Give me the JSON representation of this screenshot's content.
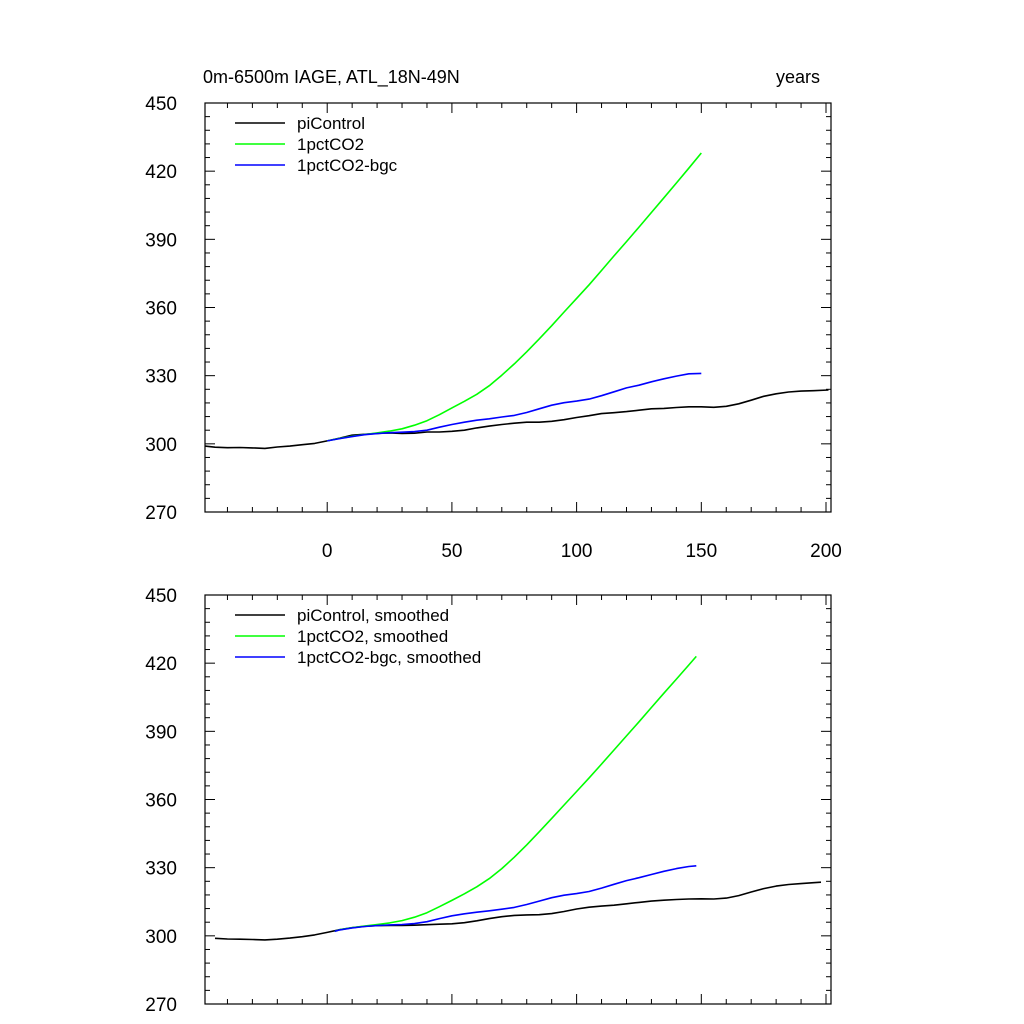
{
  "chart_data": [
    {
      "type": "line",
      "title": "0m-6500m IAGE, ATL_18N-49N",
      "right_title": "years",
      "xlabel": "",
      "ylabel": "",
      "xlim": [
        -49,
        202
      ],
      "ylim": [
        270,
        450
      ],
      "x_ticks": [
        0,
        50,
        100,
        150,
        200
      ],
      "x_tick_labels": [
        "0",
        "50",
        "100",
        "150",
        "200"
      ],
      "y_ticks": [
        270,
        300,
        330,
        360,
        390,
        420,
        450
      ],
      "y_tick_labels": [
        "270",
        "300",
        "330",
        "360",
        "390",
        "420",
        "450"
      ],
      "legend_position": "top-left",
      "grid": false,
      "series": [
        {
          "name": "piControl",
          "color": "#000000",
          "points": [
            [
              -49,
              299
            ],
            [
              -45,
              298.5
            ],
            [
              -40,
              298.3
            ],
            [
              -35,
              298.4
            ],
            [
              -30,
              298.2
            ],
            [
              -25,
              298
            ],
            [
              -20,
              298.6
            ],
            [
              -15,
              299
            ],
            [
              -10,
              299.6
            ],
            [
              -5,
              300.2
            ],
            [
              0,
              301.3
            ],
            [
              5,
              302.5
            ],
            [
              10,
              303.8
            ],
            [
              15,
              304.2
            ],
            [
              20,
              304.6
            ],
            [
              25,
              304.8
            ],
            [
              30,
              304.6
            ],
            [
              35,
              304.7
            ],
            [
              40,
              305.2
            ],
            [
              45,
              305.2
            ],
            [
              50,
              305.5
            ],
            [
              55,
              306
            ],
            [
              60,
              307
            ],
            [
              65,
              307.8
            ],
            [
              70,
              308.5
            ],
            [
              75,
              309.1
            ],
            [
              80,
              309.5
            ],
            [
              85,
              309.5
            ],
            [
              90,
              309.9
            ],
            [
              95,
              310.6
            ],
            [
              100,
              311.6
            ],
            [
              105,
              312.4
            ],
            [
              110,
              313.3
            ],
            [
              115,
              313.7
            ],
            [
              120,
              314.2
            ],
            [
              125,
              314.8
            ],
            [
              130,
              315.4
            ],
            [
              135,
              315.6
            ],
            [
              140,
              316
            ],
            [
              145,
              316.3
            ],
            [
              150,
              316.3
            ],
            [
              155,
              316.1
            ],
            [
              160,
              316.5
            ],
            [
              165,
              317.6
            ],
            [
              170,
              319.2
            ],
            [
              175,
              320.9
            ],
            [
              180,
              322
            ],
            [
              185,
              322.8
            ],
            [
              190,
              323.2
            ],
            [
              195,
              323.4
            ],
            [
              201,
              323.7
            ]
          ]
        },
        {
          "name": "1pctCO2",
          "color": "#00ff00",
          "points": [
            [
              0,
              301.3
            ],
            [
              5,
              302.4
            ],
            [
              10,
              303.3
            ],
            [
              15,
              304.1
            ],
            [
              20,
              304.8
            ],
            [
              25,
              305.6
            ],
            [
              30,
              306.6
            ],
            [
              35,
              308.2
            ],
            [
              40,
              310.2
            ],
            [
              45,
              312.8
            ],
            [
              50,
              315.8
            ],
            [
              55,
              318.7
            ],
            [
              60,
              321.8
            ],
            [
              65,
              325.6
            ],
            [
              70,
              330.2
            ],
            [
              75,
              335.2
            ],
            [
              80,
              340.5
            ],
            [
              85,
              346.2
            ],
            [
              90,
              352
            ],
            [
              95,
              358
            ],
            [
              100,
              364
            ],
            [
              105,
              370
            ],
            [
              110,
              376.3
            ],
            [
              115,
              382.7
            ],
            [
              120,
              389
            ],
            [
              125,
              395.4
            ],
            [
              130,
              401.8
            ],
            [
              135,
              408.3
            ],
            [
              140,
              414.8
            ],
            [
              145,
              421.3
            ],
            [
              150,
              428
            ]
          ]
        },
        {
          "name": "1pctCO2-bgc",
          "color": "#0000ff",
          "points": [
            [
              0,
              301.3
            ],
            [
              5,
              302.3
            ],
            [
              10,
              303.2
            ],
            [
              15,
              304
            ],
            [
              20,
              304.5
            ],
            [
              25,
              304.9
            ],
            [
              30,
              305.1
            ],
            [
              35,
              305.4
            ],
            [
              40,
              306
            ],
            [
              45,
              307.3
            ],
            [
              50,
              308.5
            ],
            [
              55,
              309.5
            ],
            [
              60,
              310.4
            ],
            [
              65,
              311
            ],
            [
              70,
              311.8
            ],
            [
              75,
              312.5
            ],
            [
              80,
              313.8
            ],
            [
              85,
              315.4
            ],
            [
              90,
              317
            ],
            [
              95,
              318.1
            ],
            [
              100,
              318.8
            ],
            [
              105,
              319.7
            ],
            [
              110,
              321.2
            ],
            [
              115,
              322.9
            ],
            [
              120,
              324.6
            ],
            [
              125,
              325.8
            ],
            [
              130,
              327.3
            ],
            [
              135,
              328.6
            ],
            [
              140,
              329.8
            ],
            [
              145,
              330.8
            ],
            [
              150,
              331
            ]
          ]
        }
      ]
    },
    {
      "type": "line",
      "title": "",
      "xlabel": "",
      "ylabel": "",
      "xlim": [
        -49,
        202
      ],
      "ylim": [
        270,
        450
      ],
      "x_ticks": [
        0,
        50,
        100,
        150,
        200
      ],
      "y_ticks": [
        270,
        300,
        330,
        360,
        390,
        420,
        450
      ],
      "y_tick_labels": [
        "270",
        "300",
        "330",
        "360",
        "390",
        "420",
        "450"
      ],
      "legend_position": "top-left",
      "grid": false,
      "series": [
        {
          "name": "piControl, smoothed",
          "color": "#000000",
          "points": [
            [
              -45,
              298.9
            ],
            [
              -40,
              298.6
            ],
            [
              -35,
              298.5
            ],
            [
              -30,
              298.4
            ],
            [
              -25,
              298.2
            ],
            [
              -20,
              298.5
            ],
            [
              -15,
              299
            ],
            [
              -10,
              299.6
            ],
            [
              -5,
              300.4
            ],
            [
              0,
              301.5
            ],
            [
              5,
              302.7
            ],
            [
              10,
              303.6
            ],
            [
              15,
              304.2
            ],
            [
              20,
              304.5
            ],
            [
              25,
              304.6
            ],
            [
              30,
              304.6
            ],
            [
              35,
              304.7
            ],
            [
              40,
              304.9
            ],
            [
              45,
              305.1
            ],
            [
              50,
              305.3
            ],
            [
              55,
              305.8
            ],
            [
              60,
              306.6
            ],
            [
              65,
              307.6
            ],
            [
              70,
              308.4
            ],
            [
              75,
              309
            ],
            [
              80,
              309.2
            ],
            [
              85,
              309.3
            ],
            [
              90,
              309.8
            ],
            [
              95,
              310.7
            ],
            [
              100,
              311.8
            ],
            [
              105,
              312.6
            ],
            [
              110,
              313.1
            ],
            [
              115,
              313.5
            ],
            [
              120,
              314.1
            ],
            [
              125,
              314.7
            ],
            [
              130,
              315.3
            ],
            [
              135,
              315.7
            ],
            [
              140,
              316
            ],
            [
              145,
              316.2
            ],
            [
              150,
              316.3
            ],
            [
              155,
              316.2
            ],
            [
              160,
              316.6
            ],
            [
              165,
              317.7
            ],
            [
              170,
              319.3
            ],
            [
              175,
              320.8
            ],
            [
              180,
              321.9
            ],
            [
              185,
              322.6
            ],
            [
              190,
              323
            ],
            [
              195,
              323.4
            ],
            [
              198,
              323.6
            ]
          ]
        },
        {
          "name": "1pctCO2, smoothed",
          "color": "#00ff00",
          "points": [
            [
              3,
              302
            ],
            [
              5,
              302.7
            ],
            [
              10,
              303.6
            ],
            [
              15,
              304.3
            ],
            [
              20,
              305
            ],
            [
              25,
              305.7
            ],
            [
              30,
              306.7
            ],
            [
              35,
              308.2
            ],
            [
              40,
              310.2
            ],
            [
              45,
              312.8
            ],
            [
              50,
              315.6
            ],
            [
              55,
              318.5
            ],
            [
              60,
              321.6
            ],
            [
              65,
              325.2
            ],
            [
              70,
              329.6
            ],
            [
              75,
              334.6
            ],
            [
              80,
              340
            ],
            [
              85,
              345.8
            ],
            [
              90,
              351.7
            ],
            [
              95,
              357.6
            ],
            [
              100,
              363.5
            ],
            [
              105,
              369.5
            ],
            [
              110,
              375.6
            ],
            [
              115,
              381.8
            ],
            [
              120,
              388
            ],
            [
              125,
              394.2
            ],
            [
              130,
              400.5
            ],
            [
              135,
              406.8
            ],
            [
              140,
              413
            ],
            [
              145,
              419.2
            ],
            [
              148,
              423
            ]
          ]
        },
        {
          "name": "1pctCO2-bgc, smoothed",
          "color": "#0000ff",
          "points": [
            [
              3,
              302
            ],
            [
              5,
              302.6
            ],
            [
              10,
              303.5
            ],
            [
              15,
              304.1
            ],
            [
              20,
              304.5
            ],
            [
              25,
              304.8
            ],
            [
              30,
              305
            ],
            [
              35,
              305.4
            ],
            [
              40,
              306.2
            ],
            [
              45,
              307.6
            ],
            [
              50,
              308.8
            ],
            [
              55,
              309.7
            ],
            [
              60,
              310.4
            ],
            [
              65,
              311
            ],
            [
              70,
              311.7
            ],
            [
              75,
              312.5
            ],
            [
              80,
              313.8
            ],
            [
              85,
              315.3
            ],
            [
              90,
              316.8
            ],
            [
              95,
              317.9
            ],
            [
              100,
              318.6
            ],
            [
              105,
              319.5
            ],
            [
              110,
              321
            ],
            [
              115,
              322.7
            ],
            [
              120,
              324.3
            ],
            [
              125,
              325.6
            ],
            [
              130,
              327
            ],
            [
              135,
              328.4
            ],
            [
              140,
              329.6
            ],
            [
              145,
              330.5
            ],
            [
              148,
              330.8
            ]
          ]
        }
      ]
    }
  ]
}
